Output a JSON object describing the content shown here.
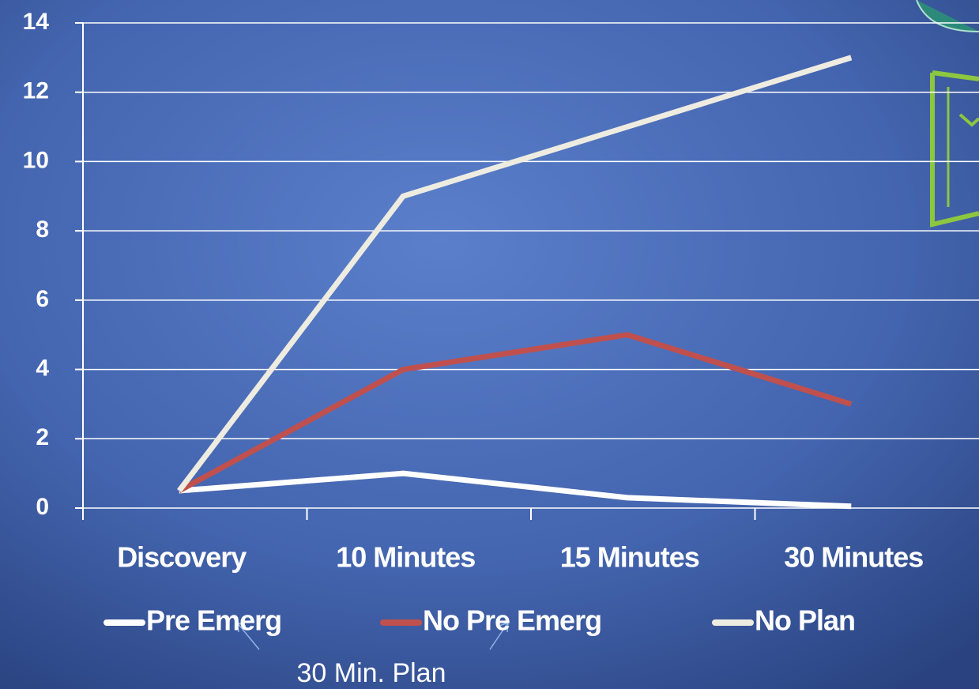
{
  "chart_data": {
    "type": "line",
    "categories": [
      "Discovery",
      "10 Minutes",
      "15 Minutes",
      "30 Minutes"
    ],
    "series": [
      {
        "name": "Pre Emerg",
        "color": "#ffffff",
        "values": [
          0.5,
          1,
          0.3,
          0.05
        ]
      },
      {
        "name": "No Pre Emerg",
        "color": "#c0504d",
        "values": [
          0.5,
          4,
          5,
          3
        ]
      },
      {
        "name": "No Plan",
        "color": "#eeece1",
        "values": [
          0.5,
          9,
          11,
          13
        ]
      }
    ],
    "ylim": [
      0,
      14
    ],
    "yticks": [
      0,
      2,
      4,
      6,
      8,
      10,
      12,
      14
    ],
    "grid": true,
    "legend": "bottom",
    "annotation": "30 Min. Plan"
  }
}
